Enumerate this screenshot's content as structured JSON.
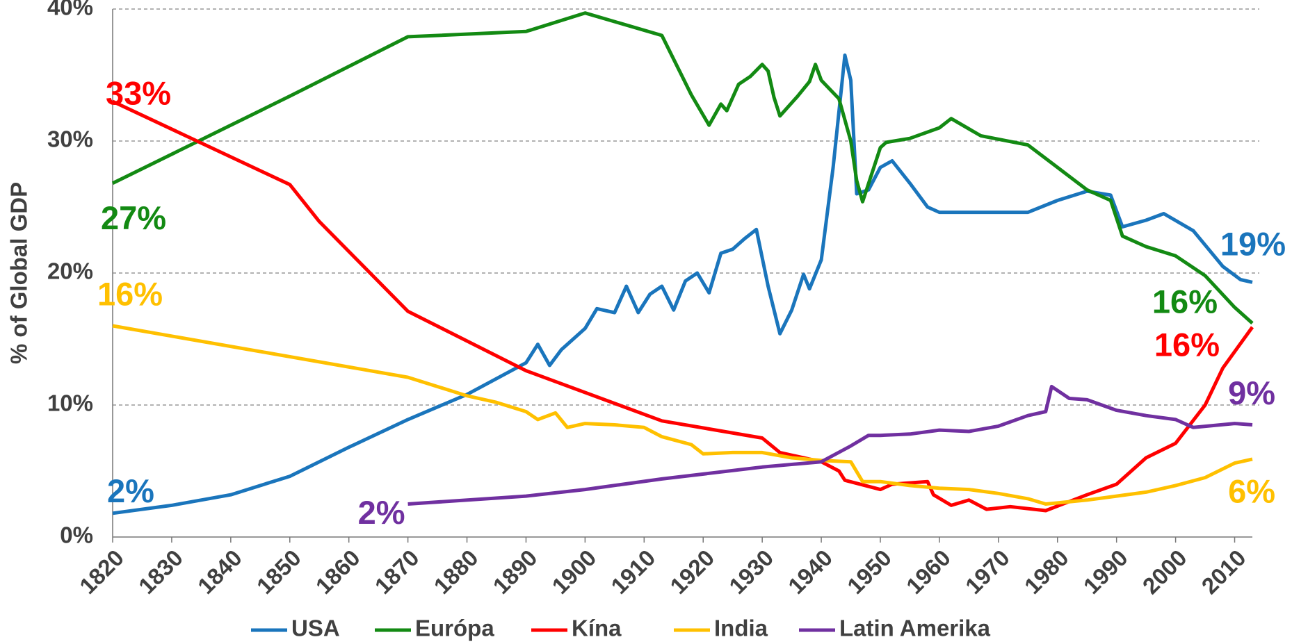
{
  "chart_data": {
    "type": "line",
    "y_label": "% of Global GDP",
    "xlim": [
      1820,
      2013
    ],
    "xticks": [
      1820,
      1830,
      1840,
      1850,
      1860,
      1870,
      1880,
      1890,
      1900,
      1910,
      1920,
      1930,
      1940,
      1950,
      1960,
      1970,
      1980,
      1990,
      2000,
      2010
    ],
    "ylim": [
      0,
      40
    ],
    "yticks": [
      {
        "value": 0,
        "label": "0%"
      },
      {
        "value": 10,
        "label": "10%"
      },
      {
        "value": 20,
        "label": "20%"
      },
      {
        "value": 30,
        "label": "30%"
      },
      {
        "value": 40,
        "label": "40%"
      }
    ],
    "grid": true,
    "legend": "bottom",
    "series": [
      {
        "name": "USA",
        "color": "#1a75bc",
        "start_label": "2%",
        "end_label": "19%",
        "x": [
          1820,
          1830,
          1840,
          1850,
          1860,
          1870,
          1880,
          1890,
          1892,
          1894,
          1896,
          1900,
          1902,
          1905,
          1907,
          1909,
          1911,
          1913,
          1915,
          1917,
          1919,
          1921,
          1923,
          1925,
          1927,
          1929,
          1931,
          1933,
          1935,
          1937,
          1938,
          1940,
          1942,
          1944,
          1945,
          1946,
          1948,
          1950,
          1952,
          1955,
          1958,
          1960,
          1965,
          1970,
          1975,
          1980,
          1985,
          1989,
          1991,
          1995,
          1998,
          2003,
          2008,
          2011,
          2013
        ],
        "values": [
          1.8,
          2.4,
          3.2,
          4.6,
          6.8,
          8.9,
          10.8,
          13.2,
          14.6,
          13.0,
          14.2,
          15.8,
          17.3,
          17.0,
          19.0,
          17.0,
          18.4,
          19.0,
          17.2,
          19.4,
          20.0,
          18.5,
          21.5,
          21.8,
          22.6,
          23.3,
          19.0,
          15.4,
          17.2,
          19.9,
          18.8,
          21.0,
          28.0,
          36.5,
          34.6,
          26.0,
          26.3,
          28.0,
          28.5,
          26.8,
          25.0,
          24.6,
          24.6,
          24.6,
          24.6,
          25.5,
          26.2,
          25.9,
          23.5,
          24.0,
          24.5,
          23.2,
          20.5,
          19.5,
          19.3
        ]
      },
      {
        "name": "Európa",
        "color": "#138a13",
        "start_label": "27%",
        "end_label": "16%",
        "x": [
          1820,
          1850,
          1870,
          1890,
          1900,
          1913,
          1918,
          1921,
          1923,
          1924,
          1926,
          1928,
          1930,
          1931,
          1932,
          1933,
          1936,
          1938,
          1939,
          1940,
          1943,
          1945,
          1946,
          1947,
          1950,
          1951,
          1955,
          1960,
          1962,
          1967,
          1975,
          1980,
          1985,
          1989,
          1991,
          1995,
          2000,
          2005,
          2010,
          2013
        ],
        "values": [
          26.8,
          33.4,
          37.9,
          38.3,
          39.7,
          38.0,
          33.5,
          31.2,
          32.8,
          32.3,
          34.3,
          34.9,
          35.8,
          35.3,
          33.3,
          31.9,
          33.4,
          34.5,
          35.8,
          34.6,
          33.2,
          30.0,
          27.0,
          25.4,
          29.5,
          29.9,
          30.2,
          31.0,
          31.7,
          30.4,
          29.7,
          28.0,
          26.3,
          25.5,
          22.8,
          22.0,
          21.3,
          19.8,
          17.4,
          16.2
        ]
      },
      {
        "name": "Kína",
        "color": "#ff0000",
        "start_label": "33%",
        "end_label": "16%",
        "x": [
          1820,
          1850,
          1855,
          1870,
          1890,
          1913,
          1930,
          1933,
          1937,
          1940,
          1943,
          1944,
          1950,
          1952,
          1958,
          1959,
          1962,
          1965,
          1968,
          1972,
          1978,
          1985,
          1990,
          1995,
          2000,
          2005,
          2008,
          2013
        ],
        "values": [
          33.0,
          26.7,
          23.9,
          17.1,
          12.6,
          8.8,
          7.5,
          6.4,
          6.0,
          5.7,
          5.0,
          4.3,
          3.6,
          4.0,
          4.2,
          3.2,
          2.4,
          2.8,
          2.1,
          2.3,
          2.0,
          3.2,
          4.0,
          6.0,
          7.1,
          10.0,
          12.8,
          15.9
        ]
      },
      {
        "name": "India",
        "color": "#ffc000",
        "start_label": "16%",
        "end_label": "6%",
        "x": [
          1820,
          1870,
          1880,
          1885,
          1890,
          1892,
          1895,
          1897,
          1900,
          1905,
          1910,
          1913,
          1918,
          1920,
          1925,
          1930,
          1935,
          1940,
          1945,
          1947,
          1950,
          1955,
          1960,
          1965,
          1970,
          1975,
          1978,
          1985,
          1990,
          1995,
          2000,
          2005,
          2010,
          2013
        ],
        "values": [
          16.0,
          12.1,
          10.7,
          10.2,
          9.5,
          8.9,
          9.4,
          8.3,
          8.6,
          8.5,
          8.3,
          7.6,
          7.0,
          6.3,
          6.4,
          6.4,
          6.0,
          5.8,
          5.7,
          4.2,
          4.2,
          3.9,
          3.7,
          3.6,
          3.3,
          2.9,
          2.5,
          2.8,
          3.1,
          3.4,
          3.9,
          4.5,
          5.6,
          5.9
        ]
      },
      {
        "name": "Latin Amerika",
        "color": "#7030a0",
        "start_label": "2%",
        "end_label": "9%",
        "x": [
          1870,
          1890,
          1900,
          1913,
          1930,
          1940,
          1945,
          1948,
          1950,
          1955,
          1960,
          1965,
          1970,
          1975,
          1978,
          1979,
          1982,
          1985,
          1990,
          1995,
          2000,
          2003,
          2010,
          2013
        ],
        "values": [
          2.5,
          3.1,
          3.6,
          4.4,
          5.3,
          5.7,
          6.9,
          7.7,
          7.7,
          7.8,
          8.1,
          8.0,
          8.4,
          9.2,
          9.5,
          11.4,
          10.5,
          10.4,
          9.6,
          9.2,
          8.9,
          8.3,
          8.6,
          8.5
        ]
      }
    ]
  }
}
